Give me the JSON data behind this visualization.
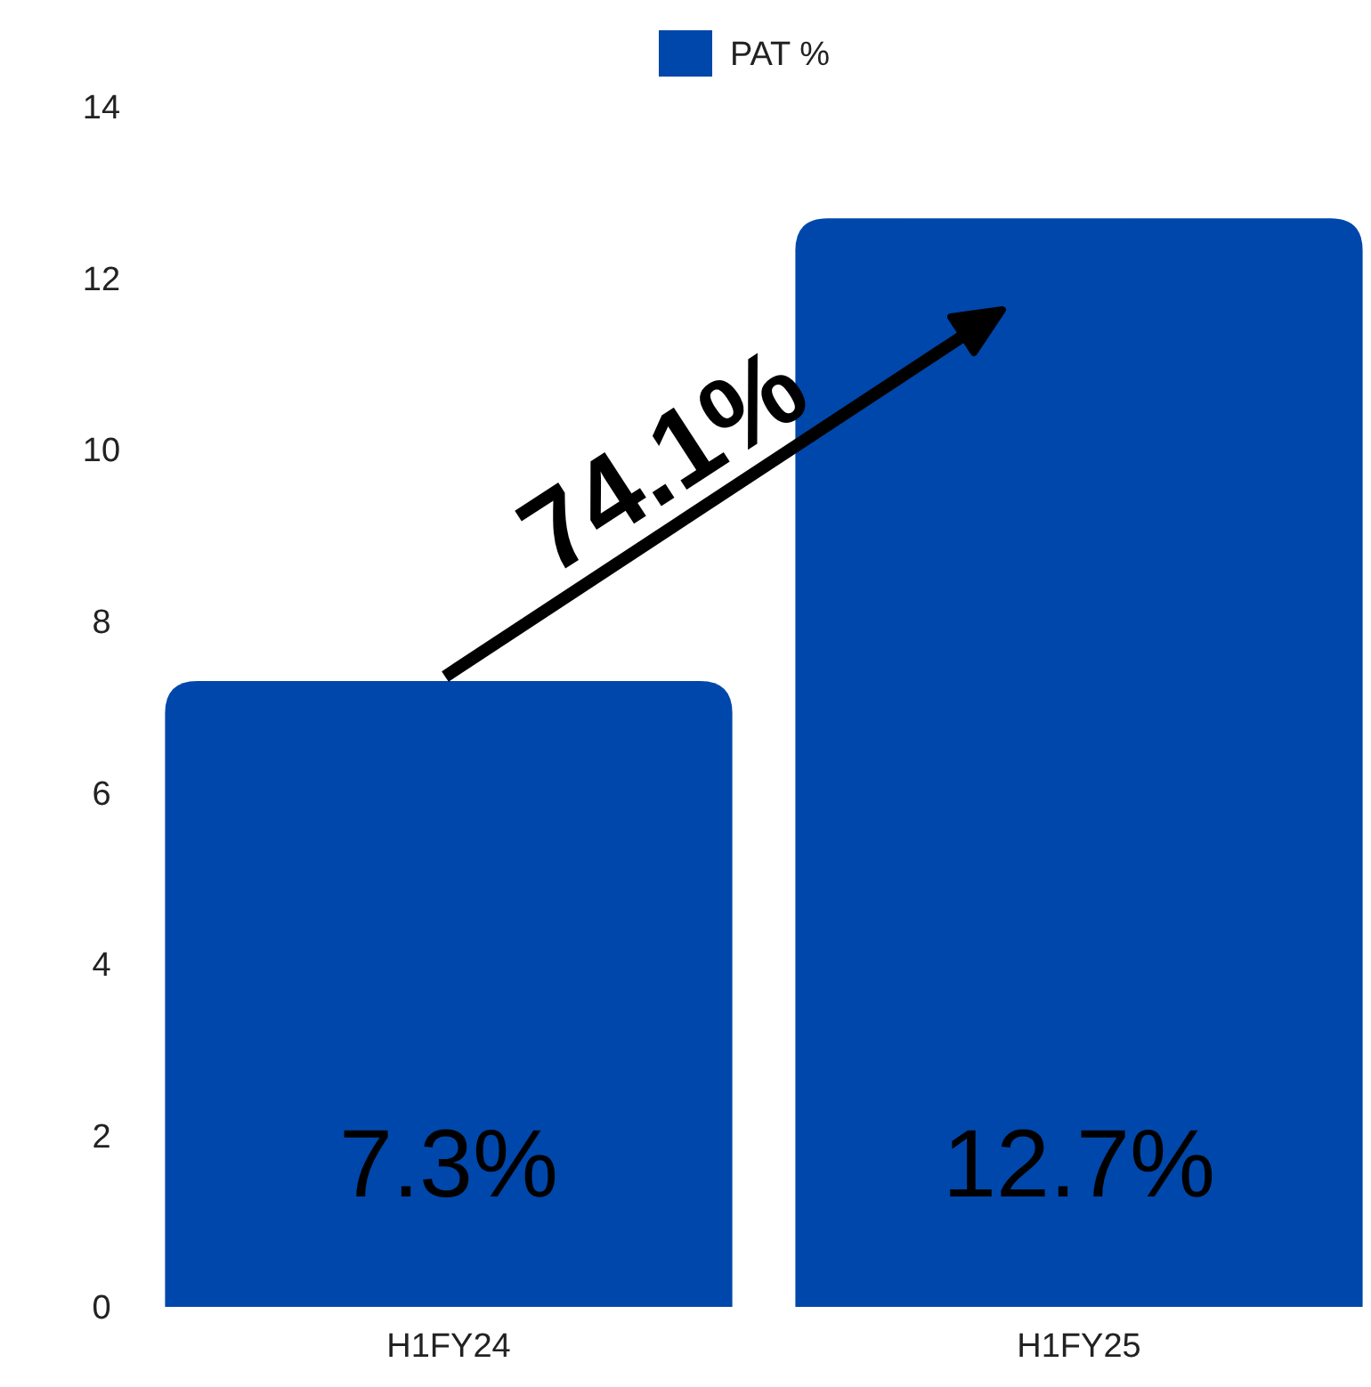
{
  "chart_data": {
    "type": "bar",
    "categories": [
      "H1FY24",
      "H1FY25"
    ],
    "series": [
      {
        "name": "PAT %",
        "color": "#0047ab",
        "values": [
          7.3,
          12.7
        ],
        "value_labels": [
          "7.3%",
          "12.7%"
        ]
      }
    ],
    "ylim": [
      0,
      14
    ],
    "yticks": [
      0,
      2,
      4,
      6,
      8,
      10,
      12,
      14
    ],
    "grid": false,
    "legend": "top",
    "annotations": [
      "74.1%"
    ]
  }
}
